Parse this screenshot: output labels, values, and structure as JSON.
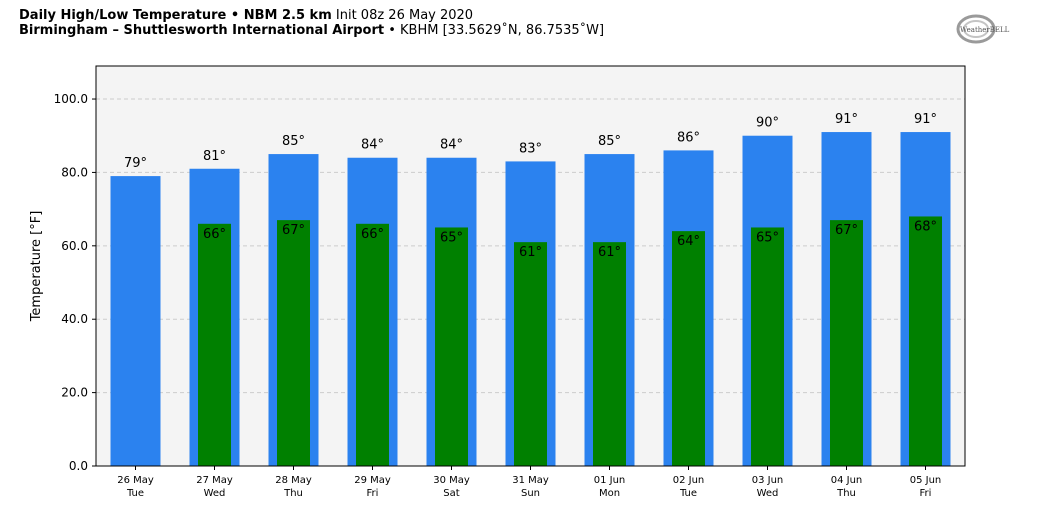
{
  "header": {
    "title_bold": "Daily High/Low Temperature • NBM 2.5 km",
    "init": "Init 08z 26 May 2020",
    "location_bold": "Birmingham – Shuttlesworth International Airport",
    "station": "• KBHM [33.5629˚N, 86.7535˚W]"
  },
  "logo": {
    "text": "WeatherBELL"
  },
  "colors": {
    "high": "#2b82ef",
    "low": "#008000",
    "plot_bg": "#f4f4f4",
    "grid": "#cccccc"
  },
  "chart_data": {
    "type": "bar",
    "ylabel": "Temperature [°F]",
    "ylim": [
      0,
      109
    ],
    "yticks": [
      "0.0",
      "20.0",
      "40.0",
      "60.0",
      "80.0",
      "100.0"
    ],
    "grid": true,
    "categories": [
      {
        "date": "26 May",
        "day": "Tue"
      },
      {
        "date": "27 May",
        "day": "Wed"
      },
      {
        "date": "28 May",
        "day": "Thu"
      },
      {
        "date": "29 May",
        "day": "Fri"
      },
      {
        "date": "30 May",
        "day": "Sat"
      },
      {
        "date": "31 May",
        "day": "Sun"
      },
      {
        "date": "01 Jun",
        "day": "Mon"
      },
      {
        "date": "02 Jun",
        "day": "Tue"
      },
      {
        "date": "03 Jun",
        "day": "Wed"
      },
      {
        "date": "04 Jun",
        "day": "Thu"
      },
      {
        "date": "05 Jun",
        "day": "Fri"
      }
    ],
    "highs": [
      79,
      81,
      85,
      84,
      84,
      83,
      85,
      86,
      90,
      91,
      91
    ],
    "high_labels": [
      "79°",
      "81°",
      "85°",
      "84°",
      "84°",
      "83°",
      "85°",
      "86°",
      "90°",
      "91°",
      "91°"
    ],
    "lows": [
      null,
      66,
      67,
      66,
      65,
      61,
      61,
      64,
      65,
      67,
      68
    ],
    "low_labels": [
      "",
      "66°",
      "67°",
      "66°",
      "65°",
      "61°",
      "61°",
      "64°",
      "65°",
      "67°",
      "68°"
    ]
  }
}
